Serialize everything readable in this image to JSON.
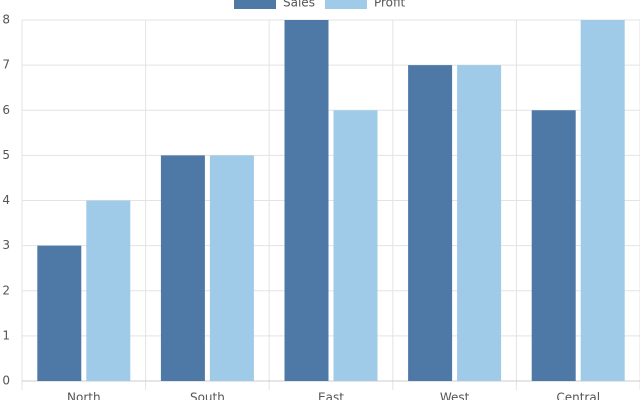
{
  "chart_data": {
    "type": "bar",
    "categories": [
      "North",
      "South",
      "East",
      "West",
      "Central"
    ],
    "series": [
      {
        "name": "Sales",
        "color": "#4e79a7",
        "values": [
          3,
          5,
          8,
          7,
          6
        ]
      },
      {
        "name": "Profit",
        "color": "#a0cbe8",
        "values": [
          4,
          5,
          6,
          7,
          8
        ]
      }
    ],
    "ylim": [
      0,
      8
    ],
    "yticks": [
      0,
      1,
      2,
      3,
      4,
      5,
      6,
      7,
      8
    ],
    "grid": true,
    "legend": "top"
  }
}
